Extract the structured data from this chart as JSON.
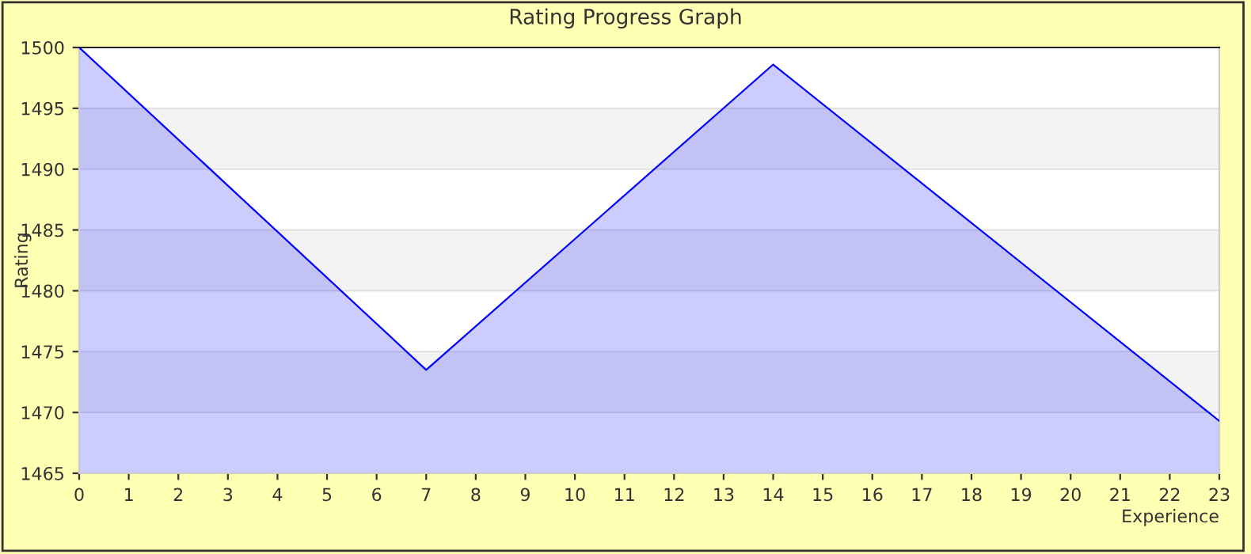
{
  "chart_data": {
    "type": "area",
    "title": "Rating Progress Graph",
    "xlabel": "Experience",
    "ylabel": "Rating",
    "series": [
      {
        "color": "#0000ff",
        "x": [
          0,
          7,
          14,
          23
        ],
        "values": [
          1500,
          1473.5,
          1498.6,
          1469.3
        ]
      }
    ],
    "xlim": [
      0,
      23
    ],
    "xticks": [
      0,
      1,
      2,
      3,
      4,
      5,
      6,
      7,
      8,
      9,
      10,
      11,
      12,
      13,
      14,
      15,
      16,
      17,
      18,
      19,
      20,
      21,
      22,
      23
    ],
    "ylim": [
      1465,
      1500
    ],
    "yticks": [
      1465,
      1470,
      1475,
      1480,
      1485,
      1490,
      1495,
      1500
    ],
    "grid": "y",
    "legend": false
  }
}
